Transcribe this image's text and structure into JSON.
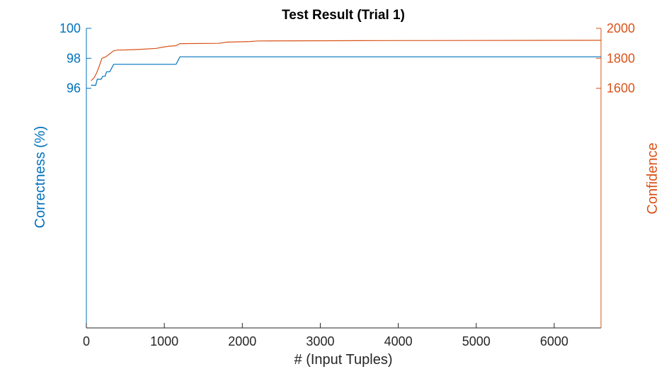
{
  "chart_data": {
    "type": "line",
    "title": "Test Result (Trial 1)",
    "xlabel": "# (Input Tuples)",
    "ylabel_left": "Correctness (%)",
    "ylabel_right": "Confidence",
    "xlim": [
      0,
      6600
    ],
    "ylim_left": [
      80,
      100
    ],
    "ylim_right": [
      0,
      2000
    ],
    "x_ticks": [
      "0",
      "1000",
      "2000",
      "3000",
      "4000",
      "5000",
      "6000"
    ],
    "y_left_ticks": [
      "96",
      "98",
      "100"
    ],
    "y_right_ticks": [
      "1600",
      "1800",
      "2000"
    ],
    "colors": {
      "left": "#0072bd",
      "right": "#d95319",
      "axis": "#262626"
    },
    "series": [
      {
        "axis": "left",
        "points": [
          [
            60,
            96.2
          ],
          [
            120,
            96.2
          ],
          [
            140,
            96.6
          ],
          [
            190,
            96.6
          ],
          [
            210,
            96.8
          ],
          [
            240,
            96.8
          ],
          [
            260,
            97.1
          ],
          [
            300,
            97.1
          ],
          [
            350,
            97.6
          ],
          [
            1150,
            97.6
          ],
          [
            1200,
            98.1
          ],
          [
            6600,
            98.1
          ]
        ]
      },
      {
        "axis": "right",
        "points": [
          [
            60,
            1650
          ],
          [
            80,
            1660
          ],
          [
            100,
            1670
          ],
          [
            130,
            1700
          ],
          [
            160,
            1740
          ],
          [
            200,
            1800
          ],
          [
            250,
            1810
          ],
          [
            300,
            1830
          ],
          [
            350,
            1850
          ],
          [
            400,
            1855
          ],
          [
            500,
            1856
          ],
          [
            700,
            1860
          ],
          [
            900,
            1866
          ],
          [
            950,
            1872
          ],
          [
            1050,
            1880
          ],
          [
            1150,
            1884
          ],
          [
            1200,
            1898
          ],
          [
            1700,
            1900
          ],
          [
            1800,
            1908
          ],
          [
            2100,
            1912
          ],
          [
            2200,
            1916
          ],
          [
            3800,
            1918
          ],
          [
            6600,
            1920
          ]
        ]
      }
    ]
  }
}
